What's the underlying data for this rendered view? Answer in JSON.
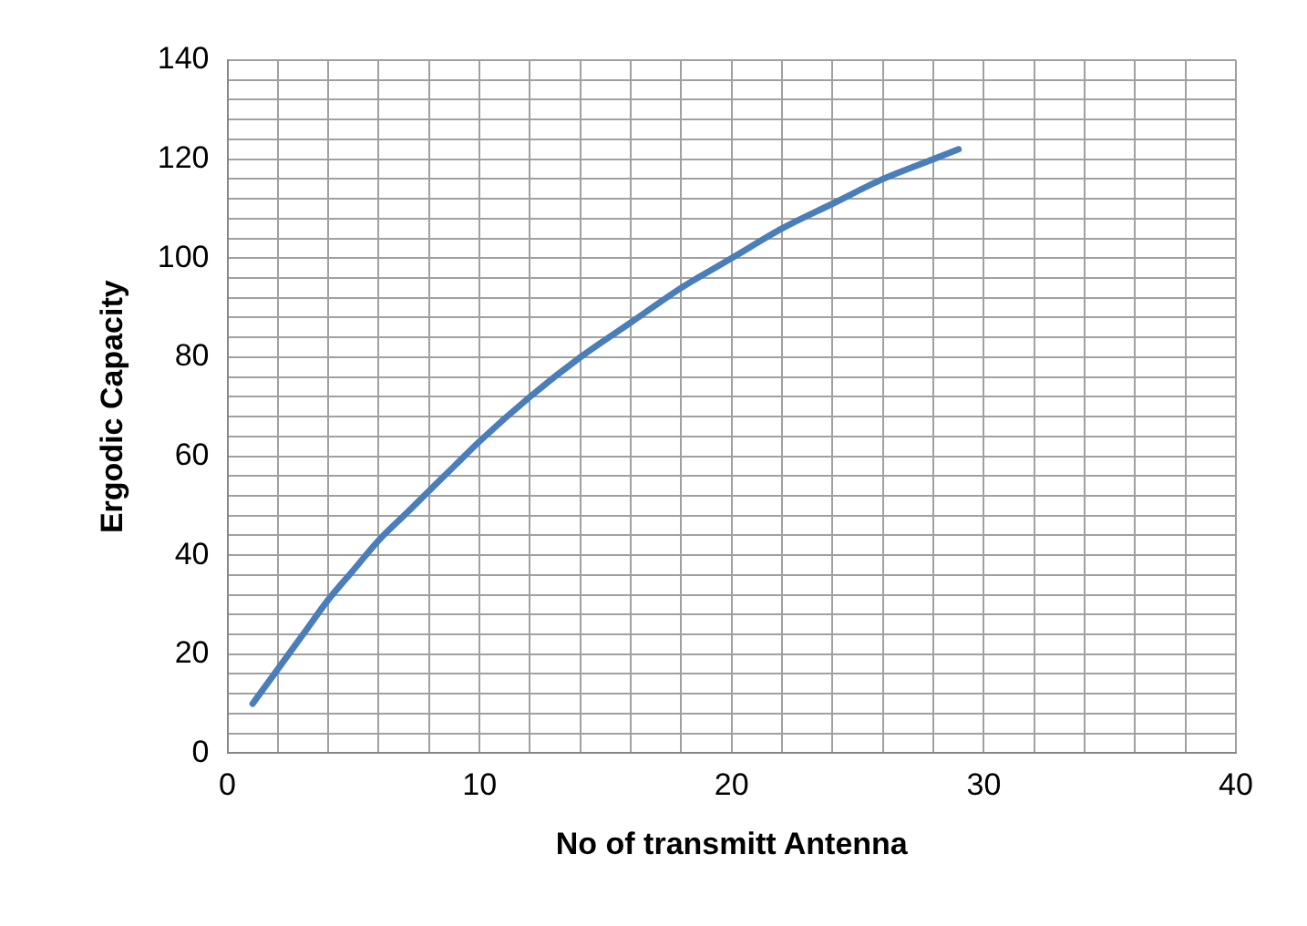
{
  "chart_data": {
    "type": "line",
    "xlabel": "No of transmitt Antenna",
    "ylabel": "Ergodic Capacity",
    "x": [
      1,
      2,
      3,
      4,
      5,
      6,
      7,
      8,
      9,
      10,
      12,
      14,
      16,
      18,
      20,
      22,
      24,
      26,
      28,
      29
    ],
    "series": [
      {
        "color": "#4a7ebb",
        "values": [
          10,
          17,
          24,
          31,
          37,
          43,
          48,
          53,
          58,
          63,
          72,
          80,
          87,
          94,
          100,
          106,
          111,
          116,
          120,
          122
        ]
      }
    ],
    "xlim": [
      0,
      40
    ],
    "ylim": [
      0,
      140
    ],
    "xticks": [
      0,
      {
        "value": 2,
        "label": null
      },
      {
        "value": 4,
        "label": null
      },
      {
        "value": 6,
        "label": null
      },
      {
        "value": 8,
        "label": null
      },
      10,
      {
        "value": 12,
        "label": null
      },
      {
        "value": 14,
        "label": null
      },
      {
        "value": 16,
        "label": null
      },
      {
        "value": 18,
        "label": null
      },
      20,
      {
        "value": 22,
        "label": null
      },
      {
        "value": 24,
        "label": null
      },
      {
        "value": 26,
        "label": null
      },
      {
        "value": 28,
        "label": null
      },
      30,
      {
        "value": 32,
        "label": null
      },
      {
        "value": 34,
        "label": null
      },
      {
        "value": 36,
        "label": null
      },
      {
        "value": 38,
        "label": null
      },
      40
    ],
    "yticks": [
      0,
      {
        "value": 4,
        "label": null
      },
      {
        "value": 8,
        "label": null
      },
      {
        "value": 12,
        "label": null
      },
      {
        "value": 16,
        "label": null
      },
      20,
      {
        "value": 24,
        "label": null
      },
      {
        "value": 28,
        "label": null
      },
      {
        "value": 32,
        "label": null
      },
      {
        "value": 36,
        "label": null
      },
      40,
      {
        "value": 44,
        "label": null
      },
      {
        "value": 48,
        "label": null
      },
      {
        "value": 52,
        "label": null
      },
      {
        "value": 56,
        "label": null
      },
      60,
      {
        "value": 64,
        "label": null
      },
      {
        "value": 68,
        "label": null
      },
      {
        "value": 72,
        "label": null
      },
      {
        "value": 76,
        "label": null
      },
      80,
      {
        "value": 84,
        "label": null
      },
      {
        "value": 88,
        "label": null
      },
      {
        "value": 92,
        "label": null
      },
      {
        "value": 96,
        "label": null
      },
      100,
      {
        "value": 104,
        "label": null
      },
      {
        "value": 108,
        "label": null
      },
      {
        "value": 112,
        "label": null
      },
      {
        "value": 116,
        "label": null
      },
      120,
      {
        "value": 124,
        "label": null
      },
      {
        "value": 128,
        "label": null
      },
      {
        "value": 132,
        "label": null
      },
      {
        "value": 136,
        "label": null
      },
      140
    ],
    "grid": true,
    "legend": false,
    "marker": "none",
    "line_style": "solid"
  }
}
